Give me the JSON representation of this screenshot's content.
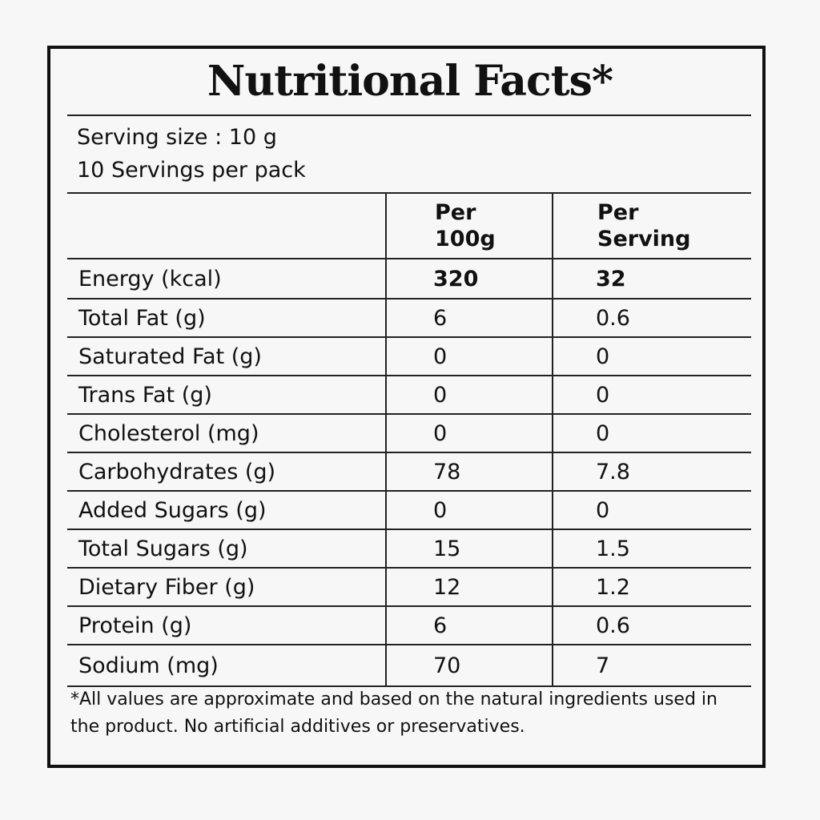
{
  "title": "Nutritional Facts*",
  "serving": {
    "size": "Serving size : 10 g",
    "per_pack": "10 Servings per pack"
  },
  "table": {
    "headers": {
      "per_100g": [
        "Per",
        "100g"
      ],
      "per_serving": [
        "Per",
        "Serving"
      ]
    },
    "rows": [
      {
        "name": "Energy (kcal)",
        "per_100g": "320",
        "per_serving": "32"
      },
      {
        "name": "Total Fat (g)",
        "per_100g": "6",
        "per_serving": "0.6"
      },
      {
        "name": "Saturated Fat (g)",
        "per_100g": "0",
        "per_serving": "0"
      },
      {
        "name": "Trans Fat (g)",
        "per_100g": "0",
        "per_serving": "0"
      },
      {
        "name": "Cholesterol (mg)",
        "per_100g": "0",
        "per_serving": "0"
      },
      {
        "name": "Carbohydrates (g)",
        "per_100g": "78",
        "per_serving": "7.8"
      },
      {
        "name": "Added Sugars (g)",
        "per_100g": "0",
        "per_serving": "0"
      },
      {
        "name": "Total Sugars (g)",
        "per_100g": "15",
        "per_serving": "1.5"
      },
      {
        "name": "Dietary Fiber (g)",
        "per_100g": "12",
        "per_serving": "1.2"
      },
      {
        "name": "Protein (g)",
        "per_100g": "6",
        "per_serving": "0.6"
      },
      {
        "name": "Sodium (mg)",
        "per_100g": "70",
        "per_serving": "7"
      }
    ]
  },
  "footnote": "*All values are approximate and based on the natural ingredients used in the product. No artificial additives or preservatives."
}
